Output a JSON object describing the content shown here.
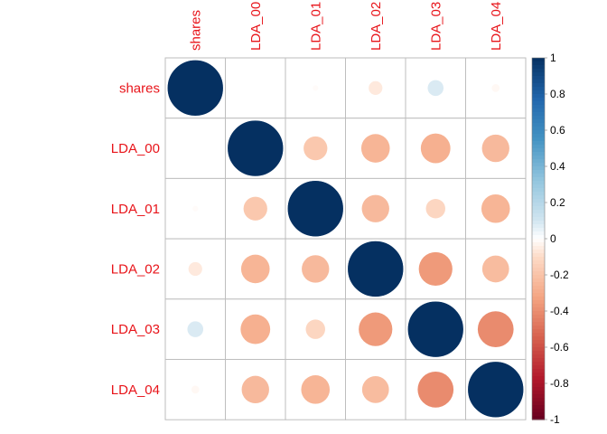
{
  "chart_data": {
    "type": "heatmap",
    "method": "circle",
    "variables": [
      "shares",
      "LDA_00",
      "LDA_01",
      "LDA_02",
      "LDA_03",
      "LDA_04"
    ],
    "matrix": [
      [
        1.0,
        0.0,
        -0.01,
        -0.06,
        0.08,
        -0.02
      ],
      [
        0.0,
        1.0,
        -0.18,
        -0.26,
        -0.28,
        -0.24
      ],
      [
        -0.01,
        -0.18,
        1.0,
        -0.24,
        -0.12,
        -0.26
      ],
      [
        -0.06,
        -0.26,
        -0.24,
        1.0,
        -0.36,
        -0.23
      ],
      [
        0.08,
        -0.28,
        -0.12,
        -0.36,
        1.0,
        -0.41
      ],
      [
        -0.02,
        -0.24,
        -0.26,
        -0.23,
        -0.41,
        1.0
      ]
    ],
    "colorbar": {
      "range": [
        -1,
        1
      ],
      "ticks": [
        "1",
        "0.8",
        "0.6",
        "0.4",
        "0.2",
        "0",
        "-0.2",
        "-0.4",
        "-0.6",
        "-0.8",
        "-1"
      ]
    },
    "colors": {
      "label": "#e8141a",
      "grid": "#bebebe",
      "negative_end": "#67001f",
      "positive_end": "#053061",
      "middle": "#ffffff"
    }
  }
}
